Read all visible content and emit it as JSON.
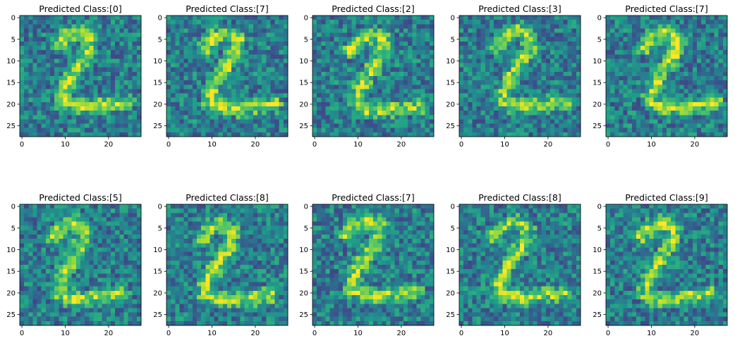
{
  "chart_data": [
    {
      "type": "heatmap",
      "title": "Predicted Class:[0]",
      "xticks": [
        0,
        10,
        20
      ],
      "yticks": [
        0,
        5,
        10,
        15,
        20,
        25
      ],
      "xlim": [
        -0.5,
        27.5
      ],
      "ylim": [
        27.5,
        -0.5
      ],
      "grid": false,
      "colormap": "viridis",
      "image_size": [
        28,
        28
      ],
      "content": "noisy handwritten digit 2"
    },
    {
      "type": "heatmap",
      "title": "Predicted Class:[7]",
      "xticks": [
        0,
        10,
        20
      ],
      "yticks": [
        0,
        5,
        10,
        15,
        20,
        25
      ],
      "xlim": [
        -0.5,
        27.5
      ],
      "ylim": [
        27.5,
        -0.5
      ],
      "grid": false,
      "colormap": "viridis",
      "image_size": [
        28,
        28
      ],
      "content": "noisy handwritten digit 2"
    },
    {
      "type": "heatmap",
      "title": "Predicted Class:[2]",
      "xticks": [
        0,
        10,
        20
      ],
      "yticks": [
        0,
        5,
        10,
        15,
        20,
        25
      ],
      "xlim": [
        -0.5,
        27.5
      ],
      "ylim": [
        27.5,
        -0.5
      ],
      "grid": false,
      "colormap": "viridis",
      "image_size": [
        28,
        28
      ],
      "content": "noisy handwritten digit 2"
    },
    {
      "type": "heatmap",
      "title": "Predicted Class:[3]",
      "xticks": [
        0,
        10,
        20
      ],
      "yticks": [
        0,
        5,
        10,
        15,
        20,
        25
      ],
      "xlim": [
        -0.5,
        27.5
      ],
      "ylim": [
        27.5,
        -0.5
      ],
      "grid": false,
      "colormap": "viridis",
      "image_size": [
        28,
        28
      ],
      "content": "noisy handwritten digit 2"
    },
    {
      "type": "heatmap",
      "title": "Predicted Class:[7]",
      "xticks": [
        0,
        10,
        20
      ],
      "yticks": [
        0,
        5,
        10,
        15,
        20,
        25
      ],
      "xlim": [
        -0.5,
        27.5
      ],
      "ylim": [
        27.5,
        -0.5
      ],
      "grid": false,
      "colormap": "viridis",
      "image_size": [
        28,
        28
      ],
      "content": "noisy handwritten digit 2"
    },
    {
      "type": "heatmap",
      "title": "Predicted Class:[5]",
      "xticks": [
        0,
        10,
        20
      ],
      "yticks": [
        0,
        5,
        10,
        15,
        20,
        25
      ],
      "xlim": [
        -0.5,
        27.5
      ],
      "ylim": [
        27.5,
        -0.5
      ],
      "grid": false,
      "colormap": "viridis",
      "image_size": [
        28,
        28
      ],
      "content": "noisy handwritten digit 2"
    },
    {
      "type": "heatmap",
      "title": "Predicted Class:[8]",
      "xticks": [
        0,
        10,
        20
      ],
      "yticks": [
        0,
        5,
        10,
        15,
        20,
        25
      ],
      "xlim": [
        -0.5,
        27.5
      ],
      "ylim": [
        27.5,
        -0.5
      ],
      "grid": false,
      "colormap": "viridis",
      "image_size": [
        28,
        28
      ],
      "content": "noisy handwritten digit 2"
    },
    {
      "type": "heatmap",
      "title": "Predicted Class:[7]",
      "xticks": [
        0,
        10,
        20
      ],
      "yticks": [
        0,
        5,
        10,
        15,
        20,
        25
      ],
      "xlim": [
        -0.5,
        27.5
      ],
      "ylim": [
        27.5,
        -0.5
      ],
      "grid": false,
      "colormap": "viridis",
      "image_size": [
        28,
        28
      ],
      "content": "noisy handwritten digit 2"
    },
    {
      "type": "heatmap",
      "title": "Predicted Class:[8]",
      "xticks": [
        0,
        10,
        20
      ],
      "yticks": [
        0,
        5,
        10,
        15,
        20,
        25
      ],
      "xlim": [
        -0.5,
        27.5
      ],
      "ylim": [
        27.5,
        -0.5
      ],
      "grid": false,
      "colormap": "viridis",
      "image_size": [
        28,
        28
      ],
      "content": "noisy handwritten digit 2"
    },
    {
      "type": "heatmap",
      "title": "Predicted Class:[9]",
      "xticks": [
        0,
        10,
        20
      ],
      "yticks": [
        0,
        5,
        10,
        15,
        20,
        25
      ],
      "xlim": [
        -0.5,
        27.5
      ],
      "ylim": [
        27.5,
        -0.5
      ],
      "grid": false,
      "colormap": "viridis",
      "image_size": [
        28,
        28
      ],
      "content": "noisy handwritten digit 2"
    }
  ]
}
